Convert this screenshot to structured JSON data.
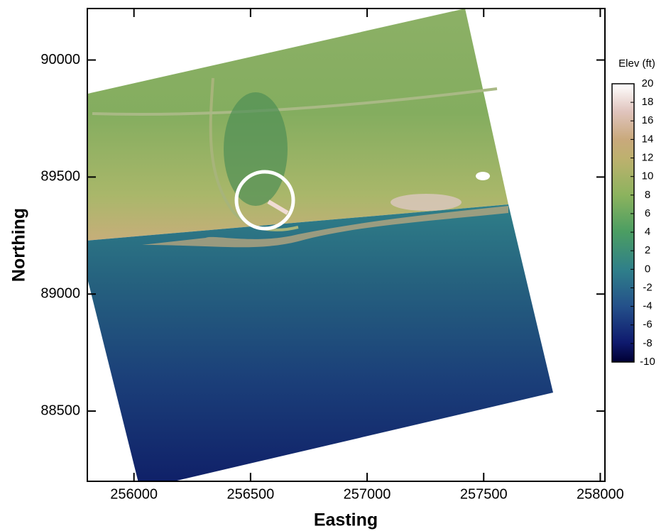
{
  "chart_data": {
    "type": "heatmap",
    "xlabel": "Easting",
    "ylabel": "Northing",
    "xlim": [
      255800,
      258020
    ],
    "ylim": [
      88200,
      90220
    ],
    "xticks": [
      256000,
      256500,
      257000,
      257500,
      258000
    ],
    "yticks": [
      88500,
      89000,
      89500,
      90000
    ],
    "colorbar": {
      "label": "Elev (ft)",
      "lim": [
        -10,
        20
      ],
      "ticks": [
        -10,
        -8,
        -6,
        -4,
        -2,
        0,
        2,
        4,
        6,
        8,
        10,
        12,
        14,
        16,
        18,
        20
      ]
    }
  }
}
